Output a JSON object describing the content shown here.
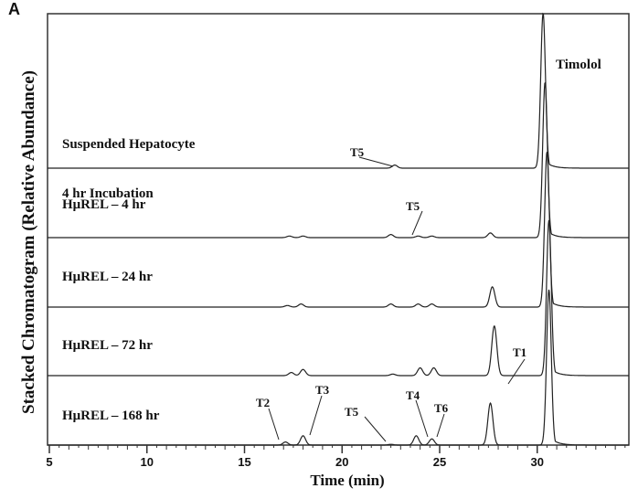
{
  "figure": {
    "panel_letter": "A",
    "ylabel": "Stacked Chromatogram  (Relative Abundance)",
    "xlabel": "Time (min)",
    "compound_label": "Timolol"
  },
  "chart_data": {
    "type": "line",
    "title": "",
    "xlabel": "Time (min)",
    "ylabel": "Stacked Chromatogram (Relative Abundance)",
    "xlim": [
      5,
      34.7
    ],
    "x_ticks": [
      5,
      10,
      15,
      20,
      25,
      30
    ],
    "x_tick_labels": [
      "5",
      "10",
      "15",
      "20",
      "25",
      "30"
    ],
    "minor_tick_step": 0.5,
    "grid": false,
    "legend": "none",
    "stacked": true,
    "series": [
      {
        "name": "Suspended Hepatocyte 4 hr Incubation",
        "label_lines": [
          "Suspended Hepatocyte",
          "4 hr Incubation"
        ],
        "peaks": [
          {
            "rt": 22.7,
            "rel_height": 0.02,
            "label": "T5"
          },
          {
            "rt": 30.3,
            "rel_height": 1.0,
            "label": "Timolol"
          }
        ]
      },
      {
        "name": "HμREL – 4 hr",
        "label_lines": [
          "HμREL – 4 hr"
        ],
        "peaks": [
          {
            "rt": 17.3,
            "rel_height": 0.01
          },
          {
            "rt": 18.0,
            "rel_height": 0.01
          },
          {
            "rt": 22.5,
            "rel_height": 0.02,
            "label": "T5"
          },
          {
            "rt": 23.9,
            "rel_height": 0.01
          },
          {
            "rt": 24.6,
            "rel_height": 0.01
          },
          {
            "rt": 27.6,
            "rel_height": 0.03
          },
          {
            "rt": 30.4,
            "rel_height": 1.0
          }
        ]
      },
      {
        "name": "HμREL – 24 hr",
        "label_lines": [
          "HμREL – 24 hr"
        ],
        "peaks": [
          {
            "rt": 17.2,
            "rel_height": 0.01
          },
          {
            "rt": 17.9,
            "rel_height": 0.02
          },
          {
            "rt": 22.5,
            "rel_height": 0.02
          },
          {
            "rt": 23.9,
            "rel_height": 0.02
          },
          {
            "rt": 24.6,
            "rel_height": 0.02
          },
          {
            "rt": 27.7,
            "rel_height": 0.13
          },
          {
            "rt": 30.5,
            "rel_height": 1.0
          }
        ]
      },
      {
        "name": "HμREL – 72 hr",
        "label_lines": [
          "HμREL – 72 hr"
        ],
        "peaks": [
          {
            "rt": 17.4,
            "rel_height": 0.02
          },
          {
            "rt": 18.0,
            "rel_height": 0.04
          },
          {
            "rt": 22.6,
            "rel_height": 0.01
          },
          {
            "rt": 24.0,
            "rel_height": 0.05
          },
          {
            "rt": 24.7,
            "rel_height": 0.05
          },
          {
            "rt": 27.8,
            "rel_height": 0.32,
            "label": "T1"
          },
          {
            "rt": 30.6,
            "rel_height": 1.0
          }
        ]
      },
      {
        "name": "HμREL – 168 hr",
        "label_lines": [
          "HμREL – 168 hr"
        ],
        "peaks": [
          {
            "rt": 17.1,
            "rel_height": 0.02,
            "label": "T2"
          },
          {
            "rt": 18.0,
            "rel_height": 0.06,
            "label": "T3"
          },
          {
            "rt": 22.5,
            "rel_height": 0.005,
            "label": "T5"
          },
          {
            "rt": 23.8,
            "rel_height": 0.06,
            "label": "T4"
          },
          {
            "rt": 24.6,
            "rel_height": 0.04,
            "label": "T6"
          },
          {
            "rt": 27.6,
            "rel_height": 0.27,
            "label": "T1"
          },
          {
            "rt": 30.6,
            "rel_height": 1.0
          }
        ]
      }
    ],
    "annotations": [
      "T1",
      "T2",
      "T3",
      "T4",
      "T5",
      "T6",
      "Timolol"
    ]
  }
}
